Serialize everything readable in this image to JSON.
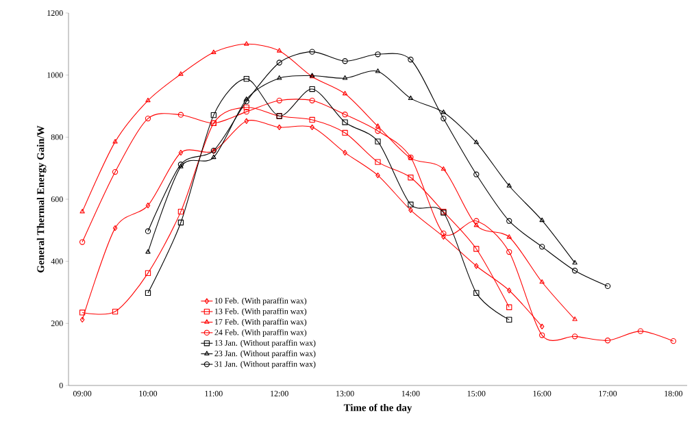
{
  "chart_data": {
    "type": "line",
    "xlabel": "Time of the day",
    "ylabel": "General Thermal Energy Gain/W",
    "xlim": [
      8.79,
      18.21
    ],
    "ylim": [
      0,
      1200
    ],
    "xticks": [
      {
        "value": 9,
        "label": "09:00"
      },
      {
        "value": 10,
        "label": "10:00"
      },
      {
        "value": 11,
        "label": "11:00"
      },
      {
        "value": 12,
        "label": "12:00"
      },
      {
        "value": 13,
        "label": "13:00"
      },
      {
        "value": 14,
        "label": "14:00"
      },
      {
        "value": 15,
        "label": "15:00"
      },
      {
        "value": 16,
        "label": "16:00"
      },
      {
        "value": 17,
        "label": "17:00"
      },
      {
        "value": 18,
        "label": "18:00"
      }
    ],
    "yticks": [
      0,
      200,
      400,
      600,
      800,
      1000,
      1200
    ],
    "grid": false,
    "legend": "bottom",
    "line_style": "solid",
    "series": [
      {
        "name": "10 Feb. (With paraffin wax)",
        "color": "#ff0000",
        "marker": "diamond",
        "x": [
          9,
          9.5,
          10,
          10.5,
          11,
          11.5,
          12,
          12.5,
          13,
          13.5,
          14,
          14.5,
          15,
          15.5,
          16
        ],
        "values": [
          212,
          507,
          580,
          750,
          755,
          852,
          832,
          832,
          750,
          677,
          565,
          479,
          385,
          306,
          190
        ]
      },
      {
        "name": "13 Feb. (With paraffin wax)",
        "color": "#ff0000",
        "marker": "square",
        "x": [
          9,
          9.5,
          10,
          10.5,
          11,
          11.5,
          12,
          12.5,
          13,
          13.5,
          14,
          14.5,
          15,
          15.5
        ],
        "values": [
          235,
          238,
          362,
          560,
          845,
          896,
          868,
          856,
          814,
          720,
          670,
          560,
          440,
          252
        ]
      },
      {
        "name": "17 Feb. (With paraffin wax)",
        "color": "#ff0000",
        "marker": "triangle",
        "x": [
          9,
          9.5,
          10,
          10.5,
          11,
          11.5,
          12,
          12.5,
          13,
          13.5,
          14,
          14.5,
          15,
          15.5,
          16,
          16.5
        ],
        "values": [
          560,
          785,
          918,
          1003,
          1073,
          1100,
          1078,
          995,
          940,
          835,
          732,
          697,
          516,
          478,
          333,
          213
        ]
      },
      {
        "name": "24 Feb. (With paraffin wax)",
        "color": "#ff0000",
        "marker": "circle",
        "x": [
          9,
          9.5,
          10,
          10.5,
          11,
          11.5,
          12,
          12.5,
          13,
          13.5,
          14,
          14.5,
          15,
          15.5,
          16,
          16.5,
          17,
          17.5,
          18
        ],
        "values": [
          462,
          688,
          860,
          872,
          845,
          882,
          918,
          918,
          873,
          820,
          735,
          490,
          530,
          430,
          162,
          158,
          145,
          175,
          143
        ]
      },
      {
        "name": "13 Jan. (Without paraffin wax)",
        "color": "#000000",
        "marker": "square",
        "x": [
          10,
          10.5,
          11,
          11.5,
          12,
          12.5,
          13,
          13.5,
          14,
          14.5,
          15,
          15.5
        ],
        "values": [
          298,
          525,
          871,
          988,
          868,
          955,
          848,
          786,
          583,
          557,
          298,
          212
        ]
      },
      {
        "name": "23 Jan. (Without paraffin wax)",
        "color": "#000000",
        "marker": "triangle",
        "x": [
          10,
          10.5,
          11,
          11.5,
          12,
          12.5,
          13,
          13.5,
          14,
          14.5,
          15,
          15.5,
          16,
          16.5
        ],
        "values": [
          430,
          705,
          735,
          922,
          990,
          998,
          990,
          1012,
          925,
          880,
          783,
          643,
          532,
          395
        ]
      },
      {
        "name": "31 Jan. (Without paraffin wax)",
        "color": "#000000",
        "marker": "circle",
        "x": [
          10,
          10.5,
          11,
          11.5,
          12,
          12.5,
          13,
          13.5,
          14,
          14.5,
          15,
          15.5,
          16,
          16.5,
          17
        ],
        "values": [
          497,
          712,
          757,
          915,
          1040,
          1075,
          1045,
          1067,
          1050,
          860,
          680,
          530,
          447,
          370,
          320
        ]
      }
    ]
  }
}
